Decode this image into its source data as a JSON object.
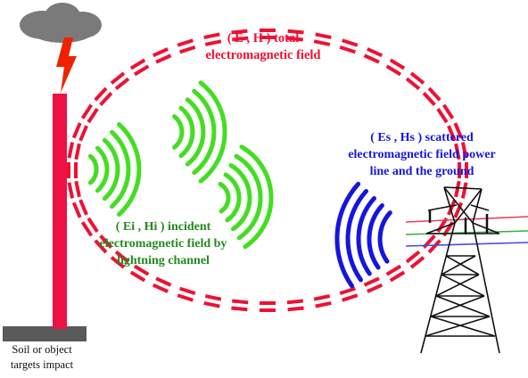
{
  "labels": {
    "total": {
      "line1": "( E , H )  total",
      "line2": "electromagnetic field"
    },
    "scattered": {
      "line1": "( Es , Hs ) scattered",
      "line2": "electromagnetic field power",
      "line3": "line and the ground"
    },
    "incident": {
      "line1": "( Ei , Hi ) incident",
      "line2": "electromagnetic field  by",
      "line3": "lightning channel"
    },
    "soil": {
      "line1": "Soil  or object",
      "line2": "targets impact"
    }
  },
  "colors": {
    "total_field": "#ee1133",
    "scattered_field": "#1515e0",
    "incident_field": "#44dd22",
    "incident_text": "#238a1c",
    "lightning_channel": "#ee1144",
    "lightning_bolt": "#ee2200",
    "cloud": "#7a7a7a",
    "ground": "#5a5a5a",
    "tower": "#111111"
  },
  "icons": {
    "cloud": "storm-cloud-icon",
    "bolt": "lightning-bolt-icon",
    "tower": "transmission-tower-icon"
  }
}
